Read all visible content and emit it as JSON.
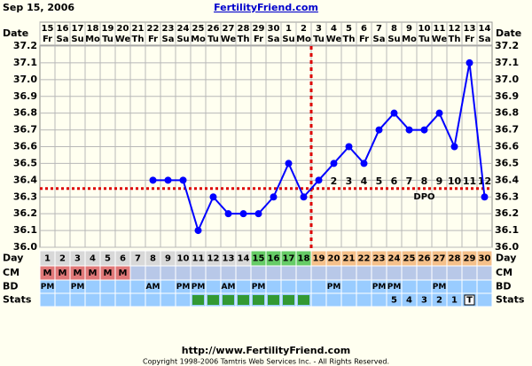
{
  "header": {
    "date": "Sep 15, 2006",
    "site": "FertilityFriend.com"
  },
  "footer": {
    "url": "http://www.FertilityFriend.com",
    "copyright": "Copyright 1998-2006 Tamtris Web Services Inc. - All Rights Reserved."
  },
  "chart_data": {
    "type": "line",
    "row_labels": {
      "date": "Date",
      "day": "Day",
      "cm": "CM",
      "bd": "BD",
      "stats": "Stats"
    },
    "dates": [
      "15",
      "16",
      "17",
      "18",
      "19",
      "20",
      "21",
      "22",
      "23",
      "24",
      "25",
      "26",
      "27",
      "28",
      "29",
      "30",
      "1",
      "2",
      "3",
      "4",
      "5",
      "6",
      "7",
      "8",
      "9",
      "10",
      "11",
      "12",
      "13",
      "14"
    ],
    "weekdays": [
      "Fr",
      "Sa",
      "Su",
      "Mo",
      "Tu",
      "We",
      "Th",
      "Fr",
      "Sa",
      "Su",
      "Mo",
      "Tu",
      "We",
      "Th",
      "Fr",
      "Sa",
      "Su",
      "Mo",
      "Tu",
      "We",
      "Th",
      "Fr",
      "Sa",
      "Su",
      "Mo",
      "Tu",
      "We",
      "Th",
      "Fr",
      "Sa"
    ],
    "days": [
      "1",
      "2",
      "3",
      "4",
      "5",
      "6",
      "7",
      "8",
      "9",
      "10",
      "11",
      "12",
      "13",
      "14",
      "15",
      "16",
      "17",
      "18",
      "19",
      "20",
      "21",
      "22",
      "23",
      "24",
      "25",
      "26",
      "27",
      "28",
      "29",
      "30"
    ],
    "values": [
      null,
      null,
      null,
      null,
      null,
      null,
      null,
      36.4,
      36.4,
      36.4,
      36.1,
      36.3,
      36.2,
      36.2,
      36.2,
      36.3,
      36.5,
      36.3,
      36.4,
      36.5,
      36.6,
      36.5,
      36.7,
      36.8,
      36.7,
      36.7,
      36.8,
      36.6,
      37.1,
      36.3
    ],
    "color": "#0000ff",
    "ylim": [
      36.0,
      37.2
    ],
    "yticks": [
      {
        "value": 36.0,
        "label": "36.0"
      },
      36.1,
      36.2,
      36.3,
      36.4,
      36.5,
      36.6,
      36.7,
      36.8,
      36.9,
      {
        "value": 37.0,
        "label": "37.0"
      },
      37.1,
      37.2
    ],
    "grid": true,
    "coverline": 36.35,
    "ovulation_day": 18,
    "dpo": [
      null,
      null,
      null,
      null,
      null,
      null,
      null,
      null,
      null,
      null,
      null,
      null,
      null,
      null,
      null,
      null,
      null,
      null,
      null,
      "2",
      "3",
      "4",
      "5",
      "6",
      "7",
      "8",
      "9",
      "10",
      "11",
      "12"
    ],
    "dpo_label": "DPO",
    "day_colors": [
      "#d8d8d8",
      "#d8d8d8",
      "#d8d8d8",
      "#d8d8d8",
      "#d8d8d8",
      "#d8d8d8",
      "#d8d8d8",
      "#d8d8d8",
      "#d8d8d8",
      "#d8d8d8",
      "#d8d8d8",
      "#d8d8d8",
      "#d8d8d8",
      "#d8d8d8",
      "#66cc66",
      "#66cc66",
      "#66cc66",
      "#66cc66",
      "#f5c08a",
      "#f5c08a",
      "#f5c08a",
      "#f5c08a",
      "#f5c08a",
      "#f5c08a",
      "#f5c08a",
      "#f5c08a",
      "#f5c08a",
      "#f5c08a",
      "#f5c08a",
      "#f5c08a"
    ],
    "cm": [
      "M",
      "M",
      "M",
      "M",
      "M",
      "M",
      null,
      null,
      null,
      null,
      null,
      null,
      null,
      null,
      null,
      null,
      null,
      null,
      null,
      null,
      null,
      null,
      null,
      null,
      null,
      null,
      null,
      null,
      null,
      null
    ],
    "bd": [
      "PM",
      null,
      "PM",
      null,
      null,
      null,
      null,
      "AM",
      null,
      "PM",
      "PM",
      null,
      "AM",
      null,
      "PM",
      null,
      null,
      null,
      null,
      "PM",
      null,
      null,
      "PM",
      "PM",
      null,
      null,
      "PM",
      null,
      null,
      null
    ],
    "stats": [
      null,
      null,
      null,
      null,
      null,
      null,
      null,
      null,
      null,
      null,
      null,
      null,
      null,
      null,
      null,
      null,
      null,
      null,
      null,
      null,
      null,
      null,
      null,
      "5",
      "4",
      "3",
      "2",
      "1",
      "T",
      null
    ],
    "stats_marked": [
      false,
      false,
      false,
      false,
      false,
      false,
      false,
      false,
      false,
      false,
      true,
      true,
      true,
      true,
      true,
      true,
      true,
      true,
      false,
      false,
      false,
      false,
      false,
      false,
      false,
      false,
      false,
      false,
      false,
      false
    ]
  }
}
